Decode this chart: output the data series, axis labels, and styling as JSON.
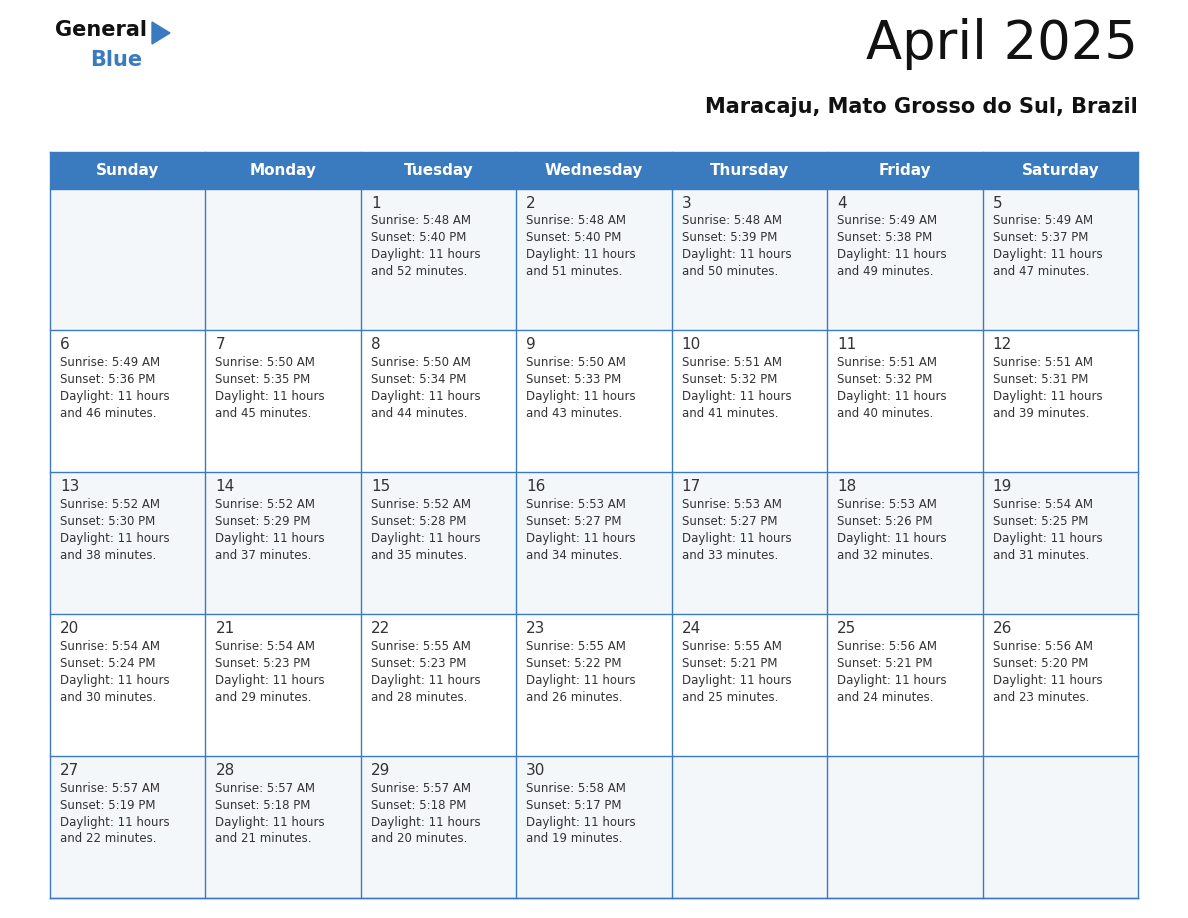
{
  "title": "April 2025",
  "subtitle": "Maracaju, Mato Grosso do Sul, Brazil",
  "header_bg_color": "#3a7bbf",
  "header_text_color": "#ffffff",
  "border_color": "#3a7bbf",
  "text_color": "#333333",
  "days_of_week": [
    "Sunday",
    "Monday",
    "Tuesday",
    "Wednesday",
    "Thursday",
    "Friday",
    "Saturday"
  ],
  "calendar_data": [
    [
      {
        "day": "",
        "sunrise": "",
        "sunset": "",
        "daylight": ""
      },
      {
        "day": "",
        "sunrise": "",
        "sunset": "",
        "daylight": ""
      },
      {
        "day": "1",
        "sunrise": "5:48 AM",
        "sunset": "5:40 PM",
        "daylight": "11 hours and 52 minutes."
      },
      {
        "day": "2",
        "sunrise": "5:48 AM",
        "sunset": "5:40 PM",
        "daylight": "11 hours and 51 minutes."
      },
      {
        "day": "3",
        "sunrise": "5:48 AM",
        "sunset": "5:39 PM",
        "daylight": "11 hours and 50 minutes."
      },
      {
        "day": "4",
        "sunrise": "5:49 AM",
        "sunset": "5:38 PM",
        "daylight": "11 hours and 49 minutes."
      },
      {
        "day": "5",
        "sunrise": "5:49 AM",
        "sunset": "5:37 PM",
        "daylight": "11 hours and 47 minutes."
      }
    ],
    [
      {
        "day": "6",
        "sunrise": "5:49 AM",
        "sunset": "5:36 PM",
        "daylight": "11 hours and 46 minutes."
      },
      {
        "day": "7",
        "sunrise": "5:50 AM",
        "sunset": "5:35 PM",
        "daylight": "11 hours and 45 minutes."
      },
      {
        "day": "8",
        "sunrise": "5:50 AM",
        "sunset": "5:34 PM",
        "daylight": "11 hours and 44 minutes."
      },
      {
        "day": "9",
        "sunrise": "5:50 AM",
        "sunset": "5:33 PM",
        "daylight": "11 hours and 43 minutes."
      },
      {
        "day": "10",
        "sunrise": "5:51 AM",
        "sunset": "5:32 PM",
        "daylight": "11 hours and 41 minutes."
      },
      {
        "day": "11",
        "sunrise": "5:51 AM",
        "sunset": "5:32 PM",
        "daylight": "11 hours and 40 minutes."
      },
      {
        "day": "12",
        "sunrise": "5:51 AM",
        "sunset": "5:31 PM",
        "daylight": "11 hours and 39 minutes."
      }
    ],
    [
      {
        "day": "13",
        "sunrise": "5:52 AM",
        "sunset": "5:30 PM",
        "daylight": "11 hours and 38 minutes."
      },
      {
        "day": "14",
        "sunrise": "5:52 AM",
        "sunset": "5:29 PM",
        "daylight": "11 hours and 37 minutes."
      },
      {
        "day": "15",
        "sunrise": "5:52 AM",
        "sunset": "5:28 PM",
        "daylight": "11 hours and 35 minutes."
      },
      {
        "day": "16",
        "sunrise": "5:53 AM",
        "sunset": "5:27 PM",
        "daylight": "11 hours and 34 minutes."
      },
      {
        "day": "17",
        "sunrise": "5:53 AM",
        "sunset": "5:27 PM",
        "daylight": "11 hours and 33 minutes."
      },
      {
        "day": "18",
        "sunrise": "5:53 AM",
        "sunset": "5:26 PM",
        "daylight": "11 hours and 32 minutes."
      },
      {
        "day": "19",
        "sunrise": "5:54 AM",
        "sunset": "5:25 PM",
        "daylight": "11 hours and 31 minutes."
      }
    ],
    [
      {
        "day": "20",
        "sunrise": "5:54 AM",
        "sunset": "5:24 PM",
        "daylight": "11 hours and 30 minutes."
      },
      {
        "day": "21",
        "sunrise": "5:54 AM",
        "sunset": "5:23 PM",
        "daylight": "11 hours and 29 minutes."
      },
      {
        "day": "22",
        "sunrise": "5:55 AM",
        "sunset": "5:23 PM",
        "daylight": "11 hours and 28 minutes."
      },
      {
        "day": "23",
        "sunrise": "5:55 AM",
        "sunset": "5:22 PM",
        "daylight": "11 hours and 26 minutes."
      },
      {
        "day": "24",
        "sunrise": "5:55 AM",
        "sunset": "5:21 PM",
        "daylight": "11 hours and 25 minutes."
      },
      {
        "day": "25",
        "sunrise": "5:56 AM",
        "sunset": "5:21 PM",
        "daylight": "11 hours and 24 minutes."
      },
      {
        "day": "26",
        "sunrise": "5:56 AM",
        "sunset": "5:20 PM",
        "daylight": "11 hours and 23 minutes."
      }
    ],
    [
      {
        "day": "27",
        "sunrise": "5:57 AM",
        "sunset": "5:19 PM",
        "daylight": "11 hours and 22 minutes."
      },
      {
        "day": "28",
        "sunrise": "5:57 AM",
        "sunset": "5:18 PM",
        "daylight": "11 hours and 21 minutes."
      },
      {
        "day": "29",
        "sunrise": "5:57 AM",
        "sunset": "5:18 PM",
        "daylight": "11 hours and 20 minutes."
      },
      {
        "day": "30",
        "sunrise": "5:58 AM",
        "sunset": "5:17 PM",
        "daylight": "11 hours and 19 minutes."
      },
      {
        "day": "",
        "sunrise": "",
        "sunset": "",
        "daylight": ""
      },
      {
        "day": "",
        "sunrise": "",
        "sunset": "",
        "daylight": ""
      },
      {
        "day": "",
        "sunrise": "",
        "sunset": "",
        "daylight": ""
      }
    ]
  ],
  "logo_triangle_color": "#3a7bbf",
  "title_fontsize": 38,
  "subtitle_fontsize": 15,
  "header_fontsize": 11,
  "day_number_fontsize": 11,
  "cell_text_fontsize": 8.5
}
